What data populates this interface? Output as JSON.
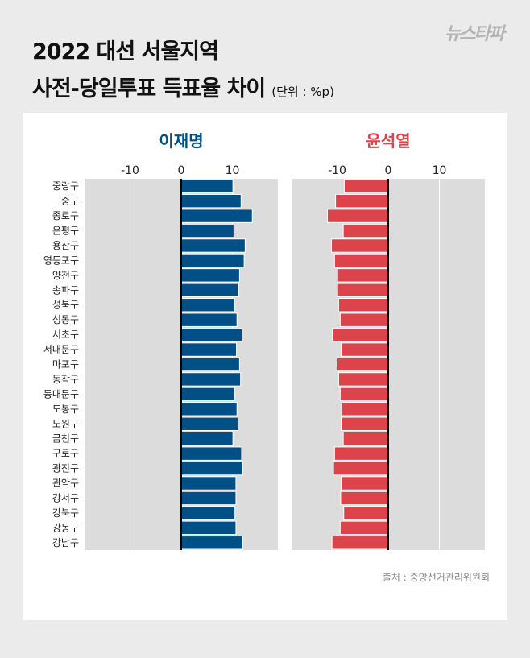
{
  "title_line1": "2022 대선 서울지역",
  "title_line2": "사전-당일투표 득표율 차이",
  "unit": "(단위 : %p)",
  "logo": "뉴스타파",
  "source": "출처 : 중앙선거관리위원회",
  "colors": {
    "lee": "#005087",
    "yoon": "#dc434b",
    "panel": "#dcdcdc"
  },
  "chart_data": [
    {
      "type": "bar",
      "orientation": "horizontal",
      "title": "이재명",
      "xlim": [
        -19,
        19
      ],
      "xticks": [
        "-10",
        "0",
        "10"
      ],
      "grid": true,
      "categories": [
        "중랑구",
        "중구",
        "종로구",
        "은평구",
        "용산구",
        "영등포구",
        "양천구",
        "송파구",
        "성북구",
        "성동구",
        "서초구",
        "서대문구",
        "마포구",
        "동작구",
        "동대문구",
        "도봉구",
        "노원구",
        "금천구",
        "구로구",
        "광진구",
        "관악구",
        "강서구",
        "강북구",
        "강동구",
        "강남구"
      ],
      "values": [
        10.1,
        11.7,
        13.9,
        10.3,
        12.5,
        12.3,
        11.4,
        11.2,
        10.4,
        10.9,
        11.9,
        10.8,
        11.4,
        11.6,
        10.4,
        10.9,
        11.1,
        10.1,
        11.8,
        12.0,
        10.7,
        10.7,
        10.5,
        10.7,
        12.0
      ]
    },
    {
      "type": "bar",
      "orientation": "horizontal",
      "title": "윤석열",
      "xlim": [
        -19,
        19
      ],
      "xticks": [
        "-10",
        "0",
        "10"
      ],
      "grid": true,
      "categories": [
        "중랑구",
        "중구",
        "종로구",
        "은평구",
        "용산구",
        "영등포구",
        "양천구",
        "송파구",
        "성북구",
        "성동구",
        "서초구",
        "서대문구",
        "마포구",
        "동작구",
        "동대문구",
        "도봉구",
        "노원구",
        "금천구",
        "구로구",
        "광진구",
        "관악구",
        "강서구",
        "강북구",
        "강동구",
        "강남구"
      ],
      "values": [
        -8.6,
        -10.3,
        -11.9,
        -8.8,
        -11.1,
        -10.5,
        -9.9,
        -9.9,
        -9.7,
        -9.4,
        -10.9,
        -9.2,
        -10.0,
        -9.7,
        -9.4,
        -9.1,
        -9.2,
        -8.8,
        -10.5,
        -10.7,
        -9.2,
        -9.3,
        -8.7,
        -9.4,
        -11.0
      ]
    }
  ]
}
